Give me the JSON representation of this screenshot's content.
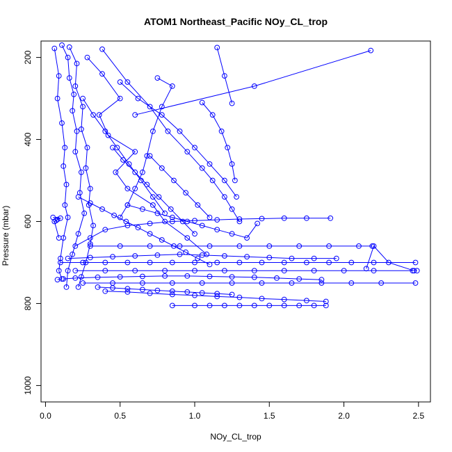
{
  "chart_data": {
    "type": "line",
    "title": "ATOM1 Northeast_Pacific NOy_CL_trop",
    "xlabel": "NOy_CL_trop",
    "ylabel": "Pressure (mbar)",
    "xlim": [
      -0.03,
      2.58
    ],
    "ylim": [
      1040,
      160
    ],
    "y_reversed": true,
    "xticks": [
      "0.0",
      "0.5",
      "1.0",
      "1.5",
      "2.0",
      "2.5"
    ],
    "yticks": [
      "200",
      "400",
      "600",
      "800",
      "1000"
    ],
    "grid": false,
    "color": "#0000ff",
    "marker": "open-circle",
    "series": [
      {
        "x": [
          0.06,
          0.09,
          0.08,
          0.11,
          0.13,
          0.12,
          0.14,
          0.13,
          0.15,
          0.12,
          0.1,
          0.09,
          0.11,
          0.08
        ],
        "y": [
          178,
          245,
          300,
          360,
          420,
          465,
          510,
          560,
          590,
          640,
          690,
          720,
          740,
          742
        ]
      },
      {
        "x": [
          0.11,
          0.15,
          0.16,
          0.19,
          0.18,
          0.21,
          0.2,
          0.24,
          0.23,
          0.26,
          0.22,
          0.18,
          0.15,
          0.14
        ],
        "y": [
          170,
          200,
          250,
          290,
          330,
          380,
          430,
          480,
          530,
          580,
          630,
          680,
          720,
          760
        ]
      },
      {
        "x": [
          0.16,
          0.21,
          0.2,
          0.25,
          0.24,
          0.28,
          0.27,
          0.3,
          0.29,
          0.32,
          0.3,
          0.27,
          0.24,
          0.22
        ],
        "y": [
          175,
          215,
          270,
          320,
          375,
          420,
          470,
          520,
          560,
          610,
          655,
          700,
          735,
          760
        ]
      },
      {
        "x": [
          0.28,
          0.38,
          0.5,
          0.36,
          0.42,
          0.6,
          0.47,
          0.55,
          0.72,
          0.8,
          0.95,
          1.08
        ],
        "y": [
          200,
          240,
          300,
          340,
          390,
          430,
          480,
          520,
          560,
          600,
          640,
          680
        ]
      },
      {
        "x": [
          0.38,
          0.55,
          0.7,
          0.82,
          0.95,
          1.05,
          1.12,
          1.2,
          1.25,
          1.3
        ],
        "y": [
          180,
          260,
          320,
          380,
          430,
          470,
          500,
          540,
          570,
          600
        ]
      },
      {
        "x": [
          0.5,
          0.62,
          0.78,
          0.9,
          1.0,
          1.1,
          1.2,
          1.28
        ],
        "y": [
          260,
          300,
          340,
          380,
          420,
          460,
          500,
          540
        ]
      },
      {
        "x": [
          0.75,
          0.85,
          0.78,
          0.72,
          0.68,
          0.65,
          0.6,
          0.55,
          0.5
        ],
        "y": [
          250,
          270,
          320,
          380,
          440,
          480,
          520,
          560,
          590
        ]
      },
      {
        "x": [
          1.05,
          1.12,
          1.18,
          1.22,
          1.25,
          1.27
        ],
        "y": [
          310,
          340,
          380,
          420,
          460,
          500
        ]
      },
      {
        "x": [
          0.6,
          1.4,
          2.18
        ],
        "y": [
          340,
          270,
          183
        ]
      },
      {
        "x": [
          1.15,
          1.2,
          1.25
        ],
        "y": [
          176,
          245,
          312
        ]
      },
      {
        "x": [
          0.2,
          0.3,
          0.4,
          0.55,
          0.7,
          0.85,
          1.0,
          1.15,
          1.3,
          1.45,
          1.6,
          1.75,
          1.91
        ],
        "y": [
          660,
          640,
          620,
          610,
          605,
          600,
          598,
          596,
          594,
          593,
          592,
          592,
          592
        ]
      },
      {
        "x": [
          0.1,
          0.25,
          0.4,
          0.55,
          0.7,
          0.85,
          1.0,
          1.15,
          1.3,
          1.45,
          1.6,
          1.75,
          1.9,
          2.05,
          2.2,
          2.48
        ],
        "y": [
          700,
          700,
          700,
          700,
          700,
          700,
          700,
          700,
          700,
          700,
          700,
          700,
          700,
          700,
          700,
          700
        ]
      },
      {
        "x": [
          0.2,
          0.4,
          0.6,
          0.8,
          1.0,
          1.2,
          1.4,
          1.6,
          1.8,
          2.0,
          2.2,
          2.46
        ],
        "y": [
          720,
          720,
          720,
          720,
          720,
          720,
          720,
          720,
          720,
          720,
          720,
          720
        ]
      },
      {
        "x": [
          0.25,
          0.45,
          0.65,
          0.85,
          1.05,
          1.25,
          1.45,
          1.65,
          1.85,
          2.05,
          2.25,
          2.48
        ],
        "y": [
          750,
          750,
          750,
          750,
          750,
          750,
          750,
          750,
          750,
          750,
          750,
          750
        ]
      },
      {
        "x": [
          0.4,
          0.55,
          0.7,
          0.85,
          1.0,
          1.15,
          1.3,
          1.45,
          1.6,
          1.75,
          1.88
        ],
        "y": [
          770,
          772,
          775,
          778,
          780,
          783,
          785,
          788,
          790,
          793,
          795
        ]
      },
      {
        "x": [
          0.85,
          1.0,
          1.1,
          1.2,
          1.3,
          1.4,
          1.5,
          1.6,
          1.7,
          1.8,
          1.88
        ],
        "y": [
          805,
          805,
          805,
          805,
          805,
          805,
          805,
          805,
          805,
          805,
          805
        ]
      },
      {
        "x": [
          0.3,
          0.5,
          0.7,
          0.9,
          1.1,
          1.3,
          1.5,
          1.7,
          1.9,
          2.1,
          2.19
        ],
        "y": [
          660,
          660,
          660,
          660,
          660,
          660,
          660,
          660,
          660,
          660,
          660
        ]
      },
      {
        "x": [
          0.15,
          0.3,
          0.45,
          0.6,
          0.75,
          0.9,
          1.05,
          1.2,
          1.35,
          1.5,
          1.65,
          1.8,
          1.95
        ],
        "y": [
          690,
          688,
          686,
          684,
          682,
          680,
          682,
          684,
          686,
          688,
          690,
          690,
          690
        ]
      },
      {
        "x": [
          0.12,
          0.2,
          0.35,
          0.5,
          0.65,
          0.8,
          0.95,
          1.1,
          1.25,
          1.4,
          1.55,
          1.7,
          1.85
        ],
        "y": [
          740,
          738,
          736,
          735,
          734,
          733,
          733,
          734,
          735,
          736,
          738,
          740,
          742
        ]
      },
      {
        "x": [
          0.35,
          0.45,
          0.55,
          0.65,
          0.75,
          0.85,
          0.95,
          1.05,
          1.15,
          1.25
        ],
        "y": [
          760,
          762,
          764,
          766,
          768,
          770,
          772,
          774,
          776,
          778
        ]
      },
      {
        "x": [
          0.22,
          0.3,
          0.38,
          0.46,
          0.54,
          0.62,
          0.7,
          0.78,
          0.86,
          0.94,
          1.02,
          1.1
        ],
        "y": [
          540,
          555,
          570,
          585,
          600,
          615,
          630,
          645,
          660,
          675,
          690,
          705
        ]
      },
      {
        "x": [
          0.45,
          0.52,
          0.6,
          0.68,
          0.76,
          0.84,
          0.92,
          1.0
        ],
        "y": [
          420,
          450,
          480,
          510,
          540,
          570,
          600,
          630
        ]
      },
      {
        "x": [
          0.55,
          0.65,
          0.75,
          0.85,
          0.95,
          1.05,
          1.15,
          1.25,
          1.35,
          1.42
        ],
        "y": [
          560,
          570,
          580,
          590,
          600,
          610,
          620,
          630,
          640,
          605
        ]
      },
      {
        "x": [
          2.15,
          2.2,
          2.3,
          2.47,
          2.49
        ],
        "y": [
          715,
          660,
          700,
          720,
          720
        ]
      },
      {
        "x": [
          0.25,
          0.32,
          0.4,
          0.48,
          0.56,
          0.64,
          0.72,
          0.8
        ],
        "y": [
          300,
          340,
          380,
          420,
          460,
          500,
          540,
          580
        ]
      },
      {
        "x": [
          0.7,
          0.78,
          0.86,
          0.94,
          1.02,
          1.1
        ],
        "y": [
          440,
          470,
          500,
          530,
          560,
          590
        ]
      },
      {
        "x": [
          0.05,
          0.1,
          0.08,
          0.07,
          0.06,
          0.09
        ],
        "y": [
          590,
          592,
          595,
          598,
          600,
          640
        ]
      }
    ]
  }
}
